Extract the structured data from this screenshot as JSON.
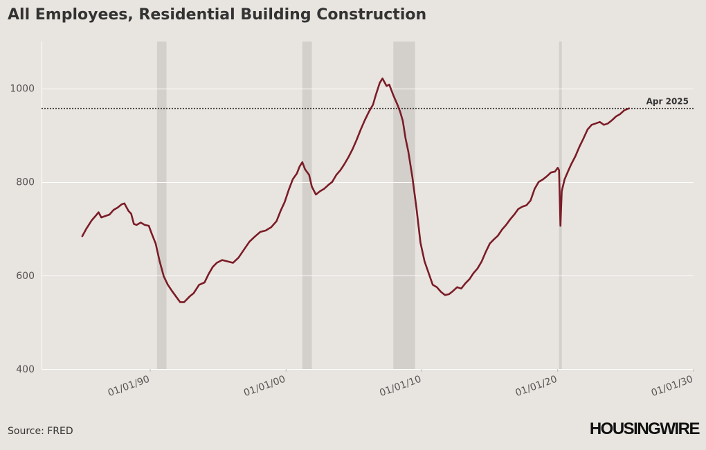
{
  "title": "All Employees, Residential Building Construction",
  "source": "Source: FRED",
  "logo_text": "HOUSINGWIRE",
  "colors": {
    "background": "#e8e4df",
    "line": "#7a1c27",
    "recession": "#d3cfca",
    "grid": "#ffffff",
    "reference": "#333333",
    "text": "#333333"
  },
  "chart_data": {
    "type": "line",
    "title": "All Employees, Residential Building Construction",
    "xlabel": "",
    "ylabel": "",
    "xlim": [
      1982.0,
      2030.0
    ],
    "ylim": [
      400,
      1100
    ],
    "x_ticks": [
      {
        "value": 1990,
        "label": "01/01/90"
      },
      {
        "value": 2000,
        "label": "01/01/00"
      },
      {
        "value": 2010,
        "label": "01/01/10"
      },
      {
        "value": 2020,
        "label": "01/01/20"
      },
      {
        "value": 2030,
        "label": "01/01/30"
      }
    ],
    "y_ticks": [
      400,
      600,
      800,
      1000
    ],
    "grid": true,
    "recessions": [
      [
        1990.5,
        1991.2
      ],
      [
        2001.2,
        2001.9
      ],
      [
        2007.9,
        2009.5
      ],
      [
        2020.1,
        2020.3
      ]
    ],
    "reference_line": {
      "value": 957,
      "label": "Apr 2025"
    },
    "series": [
      {
        "points": [
          [
            1985.0,
            684
          ],
          [
            1985.3,
            700
          ],
          [
            1985.7,
            718
          ],
          [
            1986.0,
            728
          ],
          [
            1986.2,
            735
          ],
          [
            1986.4,
            724
          ],
          [
            1986.7,
            727
          ],
          [
            1987.0,
            730
          ],
          [
            1987.3,
            740
          ],
          [
            1987.6,
            745
          ],
          [
            1987.9,
            752
          ],
          [
            1988.1,
            754
          ],
          [
            1988.4,
            738
          ],
          [
            1988.6,
            732
          ],
          [
            1988.8,
            710
          ],
          [
            1989.0,
            708
          ],
          [
            1989.3,
            713
          ],
          [
            1989.6,
            708
          ],
          [
            1989.9,
            706
          ],
          [
            1990.1,
            690
          ],
          [
            1990.4,
            668
          ],
          [
            1990.7,
            630
          ],
          [
            1991.0,
            598
          ],
          [
            1991.3,
            580
          ],
          [
            1991.6,
            567
          ],
          [
            1991.9,
            555
          ],
          [
            1992.2,
            543
          ],
          [
            1992.5,
            543
          ],
          [
            1992.9,
            555
          ],
          [
            1993.2,
            562
          ],
          [
            1993.6,
            580
          ],
          [
            1994.0,
            585
          ],
          [
            1994.3,
            603
          ],
          [
            1994.6,
            618
          ],
          [
            1994.9,
            627
          ],
          [
            1995.3,
            633
          ],
          [
            1995.7,
            630
          ],
          [
            1996.1,
            627
          ],
          [
            1996.5,
            638
          ],
          [
            1996.9,
            655
          ],
          [
            1997.3,
            672
          ],
          [
            1997.7,
            683
          ],
          [
            1998.1,
            693
          ],
          [
            1998.5,
            696
          ],
          [
            1998.9,
            703
          ],
          [
            1999.3,
            716
          ],
          [
            1999.6,
            738
          ],
          [
            1999.9,
            757
          ],
          [
            2000.2,
            783
          ],
          [
            2000.5,
            806
          ],
          [
            2000.8,
            818
          ],
          [
            2001.0,
            833
          ],
          [
            2001.2,
            842
          ],
          [
            2001.4,
            827
          ],
          [
            2001.7,
            815
          ],
          [
            2001.9,
            790
          ],
          [
            2002.2,
            773
          ],
          [
            2002.5,
            780
          ],
          [
            2002.8,
            785
          ],
          [
            2003.1,
            793
          ],
          [
            2003.4,
            800
          ],
          [
            2003.7,
            815
          ],
          [
            2004.0,
            825
          ],
          [
            2004.3,
            838
          ],
          [
            2004.6,
            853
          ],
          [
            2004.9,
            870
          ],
          [
            2005.2,
            890
          ],
          [
            2005.5,
            912
          ],
          [
            2005.8,
            932
          ],
          [
            2006.1,
            950
          ],
          [
            2006.4,
            965
          ],
          [
            2006.6,
            985
          ],
          [
            2006.9,
            1012
          ],
          [
            2007.1,
            1021
          ],
          [
            2007.4,
            1005
          ],
          [
            2007.6,
            1008
          ],
          [
            2007.9,
            985
          ],
          [
            2008.2,
            965
          ],
          [
            2008.4,
            950
          ],
          [
            2008.6,
            930
          ],
          [
            2008.8,
            893
          ],
          [
            2009.0,
            865
          ],
          [
            2009.3,
            810
          ],
          [
            2009.6,
            745
          ],
          [
            2009.9,
            670
          ],
          [
            2010.2,
            630
          ],
          [
            2010.5,
            605
          ],
          [
            2010.8,
            580
          ],
          [
            2011.1,
            575
          ],
          [
            2011.4,
            565
          ],
          [
            2011.7,
            558
          ],
          [
            2012.0,
            560
          ],
          [
            2012.3,
            567
          ],
          [
            2012.6,
            575
          ],
          [
            2012.9,
            572
          ],
          [
            2013.2,
            583
          ],
          [
            2013.5,
            592
          ],
          [
            2013.8,
            605
          ],
          [
            2014.1,
            615
          ],
          [
            2014.4,
            630
          ],
          [
            2014.7,
            650
          ],
          [
            2015.0,
            668
          ],
          [
            2015.3,
            677
          ],
          [
            2015.6,
            685
          ],
          [
            2015.9,
            698
          ],
          [
            2016.2,
            708
          ],
          [
            2016.5,
            720
          ],
          [
            2016.8,
            730
          ],
          [
            2017.1,
            742
          ],
          [
            2017.4,
            747
          ],
          [
            2017.7,
            750
          ],
          [
            2018.0,
            760
          ],
          [
            2018.3,
            785
          ],
          [
            2018.6,
            800
          ],
          [
            2018.9,
            805
          ],
          [
            2019.2,
            812
          ],
          [
            2019.5,
            820
          ],
          [
            2019.8,
            822
          ],
          [
            2020.0,
            830
          ],
          [
            2020.1,
            825
          ],
          [
            2020.2,
            706
          ],
          [
            2020.3,
            780
          ],
          [
            2020.5,
            805
          ],
          [
            2020.8,
            825
          ],
          [
            2021.0,
            838
          ],
          [
            2021.3,
            855
          ],
          [
            2021.6,
            875
          ],
          [
            2021.9,
            893
          ],
          [
            2022.2,
            912
          ],
          [
            2022.5,
            922
          ],
          [
            2022.8,
            925
          ],
          [
            2023.1,
            928
          ],
          [
            2023.4,
            922
          ],
          [
            2023.7,
            925
          ],
          [
            2024.0,
            932
          ],
          [
            2024.3,
            940
          ],
          [
            2024.6,
            945
          ],
          [
            2024.9,
            953
          ],
          [
            2025.25,
            957
          ]
        ]
      }
    ]
  }
}
